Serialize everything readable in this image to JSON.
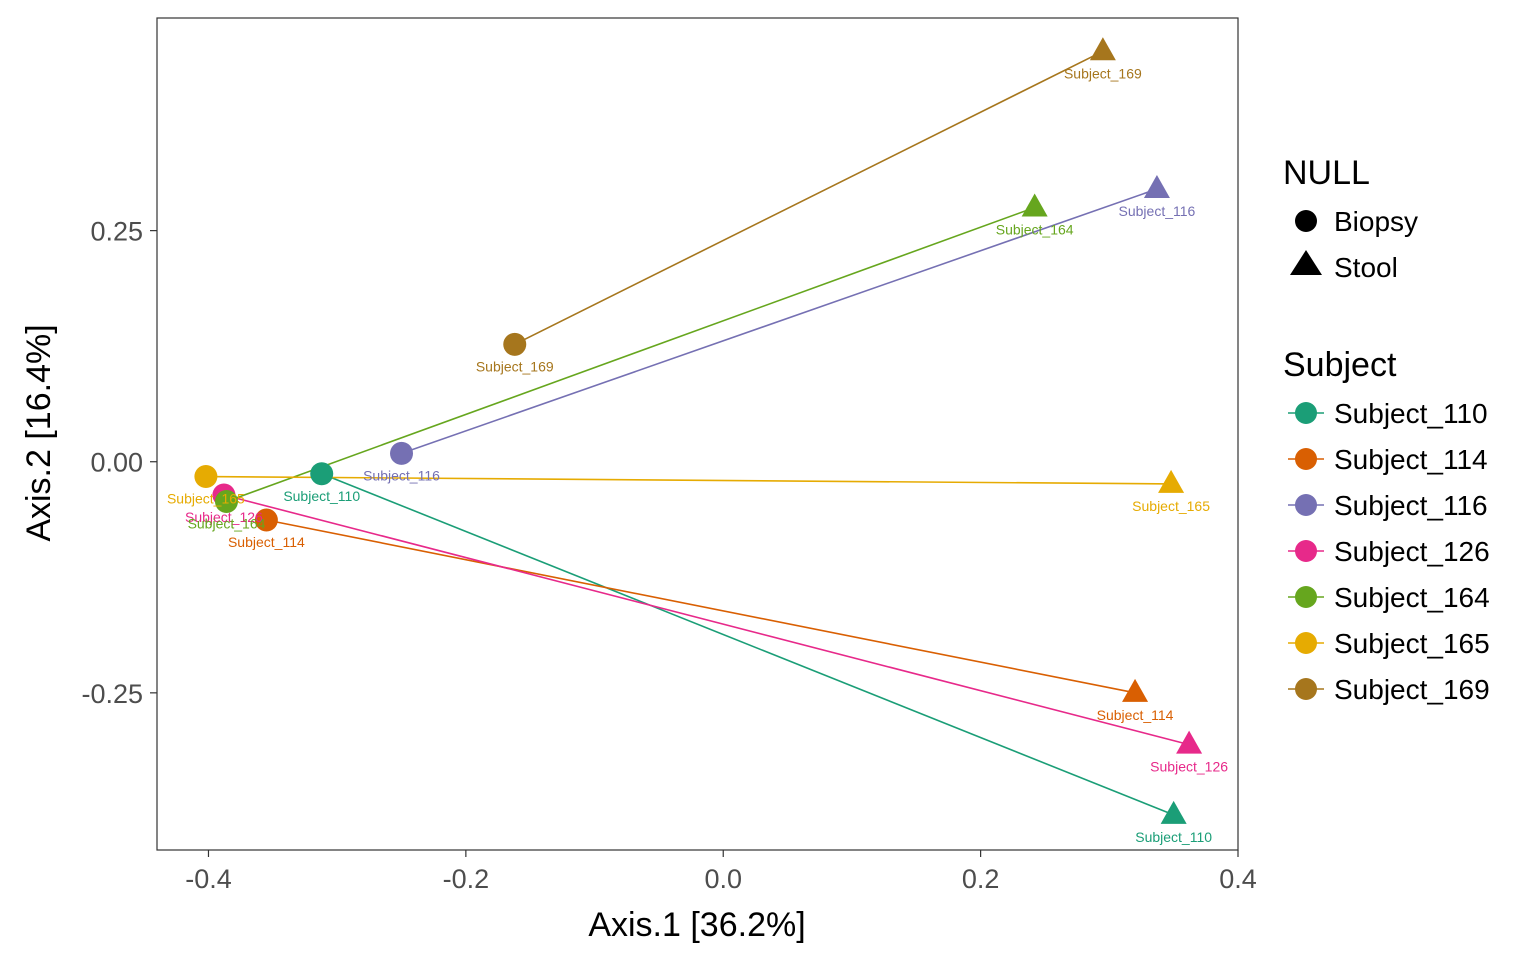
{
  "chart_data": {
    "type": "scatter",
    "xlabel": "Axis.1   [36.2%]",
    "ylabel": "Axis.2   [16.4%]",
    "xlim": [
      -0.44,
      0.4
    ],
    "ylim": [
      -0.42,
      0.48
    ],
    "x_ticks": [
      {
        "value": -0.4,
        "label": "-0.4"
      },
      {
        "value": -0.2,
        "label": "-0.2"
      },
      {
        "value": 0.0,
        "label": "0.0"
      },
      {
        "value": 0.2,
        "label": "0.2"
      },
      {
        "value": 0.4,
        "label": "0.4"
      }
    ],
    "y_ticks": [
      {
        "value": 0.25,
        "label": "0.25"
      },
      {
        "value": 0.0,
        "label": "0.00"
      },
      {
        "value": -0.25,
        "label": "-0.25"
      }
    ],
    "grid": false,
    "legend_position": "right",
    "shape_legend": {
      "title": "NULL",
      "entries": [
        {
          "label": "Biopsy",
          "shape": "circle"
        },
        {
          "label": "Stool",
          "shape": "triangle"
        }
      ]
    },
    "color_legend": {
      "title": "Subject"
    },
    "series": [
      {
        "name": "Subject_110",
        "color": "#1b9e77",
        "biopsy": {
          "x": -0.312,
          "y": -0.013
        },
        "stool": {
          "x": 0.35,
          "y": -0.382
        }
      },
      {
        "name": "Subject_114",
        "color": "#d95f02",
        "biopsy": {
          "x": -0.355,
          "y": -0.063
        },
        "stool": {
          "x": 0.32,
          "y": -0.25
        }
      },
      {
        "name": "Subject_116",
        "color": "#7570b3",
        "biopsy": {
          "x": -0.25,
          "y": 0.009
        },
        "stool": {
          "x": 0.337,
          "y": 0.295
        }
      },
      {
        "name": "Subject_126",
        "color": "#e7298a",
        "biopsy": {
          "x": -0.388,
          "y": -0.036
        },
        "stool": {
          "x": 0.362,
          "y": -0.306
        }
      },
      {
        "name": "Subject_164",
        "color": "#66a61e",
        "biopsy": {
          "x": -0.386,
          "y": -0.043
        },
        "stool": {
          "x": 0.242,
          "y": 0.275
        }
      },
      {
        "name": "Subject_165",
        "color": "#e6ab02",
        "biopsy": {
          "x": -0.402,
          "y": -0.016
        },
        "stool": {
          "x": 0.348,
          "y": -0.024
        }
      },
      {
        "name": "Subject_169",
        "color": "#a6761d",
        "biopsy": {
          "x": -0.162,
          "y": 0.127
        },
        "stool": {
          "x": 0.295,
          "y": 0.444
        }
      }
    ]
  }
}
